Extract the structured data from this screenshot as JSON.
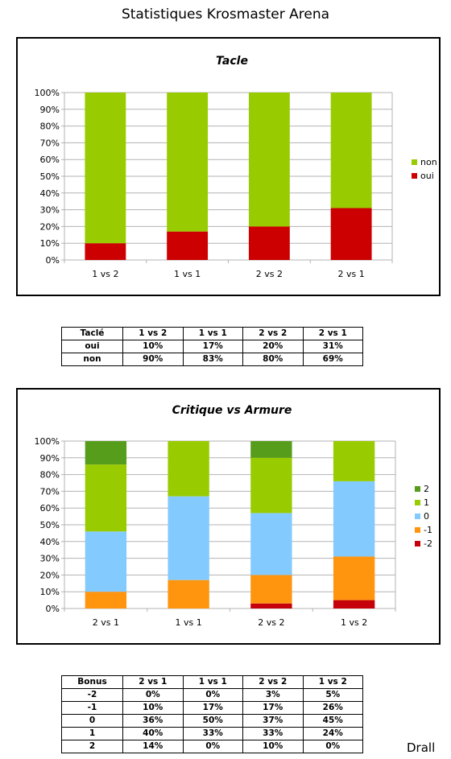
{
  "page": {
    "title": "Statistiques Krosmaster Arena",
    "signature": "Drall"
  },
  "colors": {
    "non": "#99cc00",
    "oui": "#cc0000",
    "c2": "#579d1c",
    "c1": "#99cc00",
    "c0": "#83caff",
    "cm1": "#ff950e",
    "cm2": "#c5000b"
  },
  "chart_data": [
    {
      "type": "bar",
      "stacked": "percent",
      "title": "Tacle",
      "categories": [
        "1 vs 2",
        "1 vs 1",
        "2 vs 2",
        "2 vs 1"
      ],
      "series": [
        {
          "name": "oui",
          "values": [
            10,
            17,
            20,
            31
          ],
          "color": "#cc0000"
        },
        {
          "name": "non",
          "values": [
            90,
            83,
            80,
            69
          ],
          "color": "#99cc00"
        }
      ],
      "ylim": [
        0,
        100
      ],
      "yticks": [
        "0%",
        "10%",
        "20%",
        "30%",
        "40%",
        "50%",
        "60%",
        "70%",
        "80%",
        "90%",
        "100%"
      ],
      "grid": true,
      "legend": "right"
    },
    {
      "type": "bar",
      "stacked": "percent",
      "title": "Critique vs Armure",
      "categories": [
        "2 vs 1",
        "1 vs 1",
        "2 vs 2",
        "1 vs 2"
      ],
      "series": [
        {
          "name": "-2",
          "values": [
            0,
            0,
            3,
            5
          ],
          "color": "#c5000b"
        },
        {
          "name": "-1",
          "values": [
            10,
            17,
            17,
            26
          ],
          "color": "#ff950e"
        },
        {
          "name": "0",
          "values": [
            36,
            50,
            37,
            45
          ],
          "color": "#83caff"
        },
        {
          "name": "1",
          "values": [
            40,
            33,
            33,
            24
          ],
          "color": "#99cc00"
        },
        {
          "name": "2",
          "values": [
            14,
            0,
            10,
            0
          ],
          "color": "#579d1c"
        }
      ],
      "ylim": [
        0,
        100
      ],
      "yticks": [
        "0%",
        "10%",
        "20%",
        "30%",
        "40%",
        "50%",
        "60%",
        "70%",
        "80%",
        "90%",
        "100%"
      ],
      "grid": true,
      "legend": "right"
    }
  ],
  "table1": {
    "header": [
      "Taclé",
      "1 vs 2",
      "1 vs 1",
      "2 vs 2",
      "2 vs 1"
    ],
    "rows": [
      [
        "oui",
        "10%",
        "17%",
        "20%",
        "31%"
      ],
      [
        "non",
        "90%",
        "83%",
        "80%",
        "69%"
      ]
    ]
  },
  "table2": {
    "header": [
      "Bonus",
      "2 vs 1",
      "1 vs 1",
      "2 vs 2",
      "1 vs 2"
    ],
    "rows": [
      [
        "-2",
        "0%",
        "0%",
        "3%",
        "5%"
      ],
      [
        "-1",
        "10%",
        "17%",
        "17%",
        "26%"
      ],
      [
        "0",
        "36%",
        "50%",
        "37%",
        "45%"
      ],
      [
        "1",
        "40%",
        "33%",
        "33%",
        "24%"
      ],
      [
        "2",
        "14%",
        "0%",
        "10%",
        "0%"
      ]
    ]
  }
}
